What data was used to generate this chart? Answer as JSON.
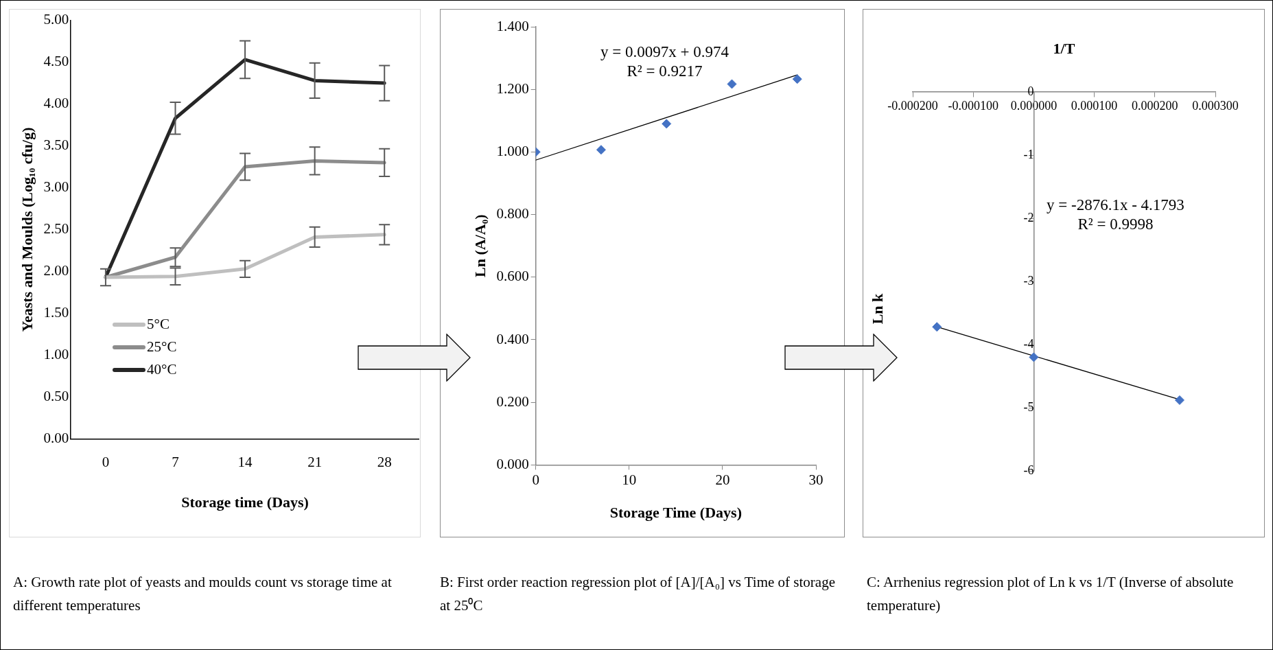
{
  "chart_data": [
    {
      "type": "line",
      "categories": [
        "0",
        "7",
        "14",
        "21",
        "28"
      ],
      "xlabel": "Storage time (Days)",
      "ylabel": "Yeasts and Moulds (Log₁₀ cfu/g)",
      "ylim": [
        0,
        5
      ],
      "yticks": [
        {
          "value": 0,
          "label": "0.00"
        },
        {
          "value": 0.5,
          "label": "0.50"
        },
        {
          "value": 1,
          "label": "1.00"
        },
        {
          "value": 1.5,
          "label": "1.50"
        },
        {
          "value": 2,
          "label": "2.00"
        },
        {
          "value": 2.5,
          "label": "2.50"
        },
        {
          "value": 3,
          "label": "3.00"
        },
        {
          "value": 3.5,
          "label": "3.50"
        },
        {
          "value": 4,
          "label": "4.00"
        },
        {
          "value": 4.5,
          "label": "4.50"
        },
        {
          "value": 5,
          "label": "5.00"
        }
      ],
      "series": [
        {
          "name": "5°C",
          "color": "#bfbfbf",
          "values": [
            1.93,
            1.94,
            2.03,
            2.41,
            2.44
          ],
          "errors": [
            0.1,
            0.1,
            0.1,
            0.12,
            0.12
          ]
        },
        {
          "name": "25°C",
          "color": "#8c8c8c",
          "values": [
            1.93,
            2.17,
            3.25,
            3.32,
            3.3
          ],
          "errors": [
            null,
            0.11,
            0.16,
            0.165,
            0.165
          ]
        },
        {
          "name": "40°C",
          "color": "#262626",
          "values": [
            1.93,
            3.83,
            4.53,
            4.28,
            4.25
          ],
          "errors": [
            null,
            0.19,
            0.225,
            0.21,
            0.21
          ]
        }
      ],
      "legend": "bottom left",
      "grid": false,
      "marker": "none",
      "annotations": [
        "A: Growth rate plot of yeasts and moulds count vs storage time at different temperatures"
      ]
    },
    {
      "type": "scatter",
      "xlabel": "Storage Time (Days)",
      "ylabel": "Ln (A/A₀)",
      "xlim": [
        0,
        30
      ],
      "xticks": [
        0,
        10,
        20,
        30
      ],
      "ylim": [
        0,
        1.4
      ],
      "yticks": [
        {
          "value": 0,
          "label": "0.000"
        },
        {
          "value": 0.2,
          "label": "0.200"
        },
        {
          "value": 0.4,
          "label": "0.400"
        },
        {
          "value": 0.6,
          "label": "0.600"
        },
        {
          "value": 0.8,
          "label": "0.800"
        },
        {
          "value": 1,
          "label": "1.000"
        },
        {
          "value": 1.2,
          "label": "1.200"
        },
        {
          "value": 1.4,
          "label": "1.400"
        }
      ],
      "series": [
        {
          "color": "#4472c4",
          "x": [
            0,
            7,
            14,
            21,
            28
          ],
          "values": [
            1.0,
            1.007,
            1.09,
            1.217,
            1.233
          ]
        },
        {
          "type": "line",
          "color": "#000000",
          "marker": "none",
          "x": [
            0,
            28
          ],
          "values": [
            0.974,
            1.246
          ]
        }
      ],
      "grid": false,
      "marker": "diamond",
      "annotations": [
        "y = 0.0097x + 0.974",
        "R² = 0.9217",
        "B: First order reaction regression plot of [A]/[A₀] vs Time of storage at 25⁰C"
      ]
    },
    {
      "type": "scatter",
      "xlabel": "1/T",
      "ylabel": "Ln k",
      "xlim": [
        -0.0002,
        0.0003
      ],
      "xticks": [
        {
          "value": -0.0002,
          "label": "-0.000200"
        },
        {
          "value": -0.0001,
          "label": "-0.000100"
        },
        {
          "value": 0,
          "label": "0.000000"
        },
        {
          "value": 0.0001,
          "label": "0.000100"
        },
        {
          "value": 0.0002,
          "label": "0.000200"
        },
        {
          "value": 0.0003,
          "label": "0.000300"
        }
      ],
      "ylim": [
        -6,
        0
      ],
      "yticks": [
        -6,
        -5,
        -4,
        -3,
        -2,
        -1,
        0
      ],
      "series": [
        {
          "color": "#4472c4",
          "x": [
            -0.00016,
            0,
            0.000241
          ],
          "values": [
            -3.72,
            -4.2,
            -4.88
          ]
        },
        {
          "type": "line",
          "color": "#000000",
          "marker": "none",
          "x": [
            -0.00016,
            0.000241
          ],
          "values": [
            -3.72,
            -4.87
          ]
        }
      ],
      "grid": false,
      "marker": "diamond",
      "annotations": [
        "y = -2876.1x - 4.1793",
        "R² = 0.9998",
        "C: Arrhenius regression plot of Ln k vs 1/T (Inverse of absolute temperature)"
      ]
    }
  ]
}
